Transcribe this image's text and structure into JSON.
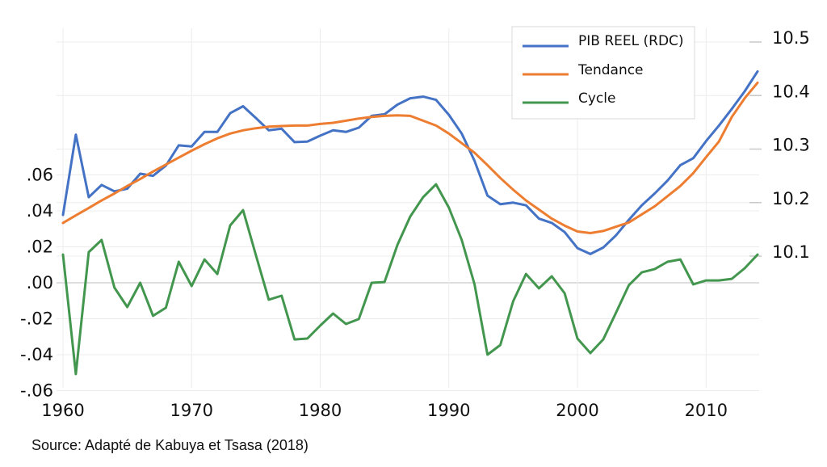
{
  "chart_data": {
    "type": "line",
    "title": "",
    "xlabel": "",
    "ylabel_left": "",
    "ylabel_right": "",
    "x": [
      1960,
      1961,
      1962,
      1963,
      1964,
      1965,
      1966,
      1967,
      1968,
      1969,
      1970,
      1971,
      1972,
      1973,
      1974,
      1975,
      1976,
      1977,
      1978,
      1979,
      1980,
      1981,
      1982,
      1983,
      1984,
      1985,
      1986,
      1987,
      1988,
      1989,
      1990,
      1991,
      1992,
      1993,
      1994,
      1995,
      1996,
      1997,
      1998,
      1999,
      2000,
      2001,
      2002,
      2003,
      2004,
      2005,
      2006,
      2007,
      2008,
      2009,
      2010,
      2011,
      2012,
      2013,
      2014
    ],
    "xlim": [
      1960,
      2014
    ],
    "x_ticks": [
      "1960",
      "1970",
      "1980",
      "1990",
      "2000",
      "2010"
    ],
    "x_tick_values": [
      1960,
      1970,
      1980,
      1990,
      2000,
      2010
    ],
    "ylim_left": [
      -0.06,
      0.06
    ],
    "y_ticks_left": [
      ".06",
      ".04",
      ".02",
      ".00",
      "-.02",
      "-.04",
      "-.06"
    ],
    "y_tick_values_left": [
      0.06,
      0.04,
      0.02,
      0.0,
      -0.02,
      -0.04,
      -0.06
    ],
    "ylim_right": [
      10.0,
      10.5
    ],
    "y_ticks_right": [
      "10.5",
      "10.4",
      "10.3",
      "10.2",
      "10.1"
    ],
    "y_tick_values_right": [
      10.5,
      10.4,
      10.3,
      10.2,
      10.1
    ],
    "grid": true,
    "legend_position": "top-right",
    "series": [
      {
        "name": "PIB REEL (RDC)",
        "axis": "right",
        "color": "#4472C4",
        "values": [
          10.177,
          10.327,
          10.21,
          10.233,
          10.221,
          10.226,
          10.254,
          10.25,
          10.269,
          10.307,
          10.305,
          10.332,
          10.332,
          10.367,
          10.38,
          10.358,
          10.335,
          10.338,
          10.313,
          10.314,
          10.325,
          10.335,
          10.332,
          10.34,
          10.362,
          10.365,
          10.383,
          10.395,
          10.398,
          10.392,
          10.364,
          10.329,
          10.278,
          10.213,
          10.197,
          10.2,
          10.195,
          10.17,
          10.162,
          10.145,
          10.115,
          10.104,
          10.116,
          10.139,
          10.168,
          10.195,
          10.217,
          10.241,
          10.27,
          10.283,
          10.315,
          10.344,
          10.375,
          10.408,
          10.445
        ]
      },
      {
        "name": "Tendance",
        "axis": "right",
        "color": "#ED7D31",
        "values": [
          10.162,
          10.176,
          10.19,
          10.204,
          10.217,
          10.231,
          10.244,
          10.258,
          10.271,
          10.284,
          10.297,
          10.309,
          10.32,
          10.329,
          10.335,
          10.339,
          10.342,
          10.343,
          10.344,
          10.344,
          10.347,
          10.349,
          10.353,
          10.357,
          10.36,
          10.362,
          10.363,
          10.362,
          10.353,
          10.344,
          10.329,
          10.311,
          10.293,
          10.27,
          10.246,
          10.224,
          10.204,
          10.187,
          10.17,
          10.157,
          10.146,
          10.143,
          10.147,
          10.155,
          10.163,
          10.178,
          10.193,
          10.212,
          10.231,
          10.255,
          10.285,
          10.314,
          10.36,
          10.395,
          10.424
        ]
      },
      {
        "name": "Cycle",
        "axis": "left",
        "color": "#43964E",
        "values": [
          0.0157,
          -0.0508,
          0.0171,
          0.0238,
          -0.0027,
          -0.0135,
          0.0,
          -0.0184,
          -0.0139,
          0.0117,
          -0.0018,
          0.013,
          0.0049,
          0.0319,
          0.0404,
          0.0153,
          -0.0094,
          -0.0072,
          -0.0315,
          -0.031,
          -0.0238,
          -0.0171,
          -0.0229,
          -0.0202,
          0.0,
          0.0004,
          0.0211,
          0.0369,
          0.0476,
          0.0548,
          0.0418,
          0.0238,
          -0.0009,
          -0.04,
          -0.0346,
          -0.0103,
          0.0049,
          -0.0031,
          0.0036,
          -0.0058,
          -0.031,
          -0.0391,
          -0.0315,
          -0.0166,
          -0.0013,
          0.0058,
          0.0076,
          0.0117,
          0.013,
          -0.0009,
          0.0013,
          0.0013,
          0.0022,
          0.0081,
          0.0157
        ]
      }
    ]
  },
  "legend": {
    "items": [
      {
        "label": "PIB REEL (RDC)",
        "color": "#4472C4"
      },
      {
        "label": "Tendance",
        "color": "#ED7D31"
      },
      {
        "label": "Cycle",
        "color": "#43964E"
      }
    ]
  },
  "source_note": "Source: Adapté de Kabuya et Tsasa (2018)"
}
